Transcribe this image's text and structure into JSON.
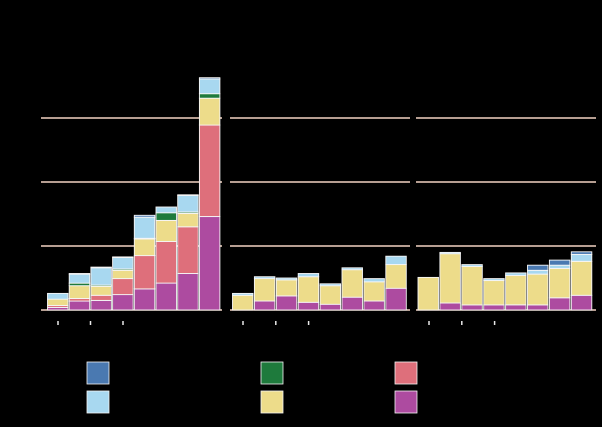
{
  "chart_data": {
    "type": "bar",
    "stacked": true,
    "title": "",
    "xlabel": "",
    "ylabel": "",
    "ylim": [
      0,
      360
    ],
    "yticks": [
      100,
      200,
      300
    ],
    "grid": true,
    "legend_position": "bottom",
    "colors": {
      "dark_blue": "#4a79b1",
      "light_blue": "#a8d8f0",
      "green": "#1e7a3c",
      "yellow": "#eddc8a",
      "salmon": "#de6f7b",
      "magenta": "#ad4ba0"
    },
    "series_order": [
      "magenta",
      "salmon",
      "yellow",
      "green",
      "light_blue",
      "dark_blue"
    ],
    "legend_order": [
      "dark_blue",
      "green",
      "salmon",
      "light_blue",
      "yellow",
      "magenta"
    ],
    "panels": [
      {
        "bars": [
          {
            "magenta": 4,
            "salmon": 3,
            "yellow": 10,
            "green": 0,
            "light_blue": 9,
            "dark_blue": 0
          },
          {
            "magenta": 14,
            "salmon": 4,
            "yellow": 20,
            "green": 4,
            "light_blue": 14,
            "dark_blue": 1
          },
          {
            "magenta": 15,
            "salmon": 8,
            "yellow": 14,
            "green": 2,
            "light_blue": 27,
            "dark_blue": 1
          },
          {
            "magenta": 24,
            "salmon": 25,
            "yellow": 13,
            "green": 2,
            "light_blue": 18,
            "dark_blue": 1
          },
          {
            "magenta": 33,
            "salmon": 52,
            "yellow": 26,
            "green": 1,
            "light_blue": 33,
            "dark_blue": 3
          },
          {
            "magenta": 42,
            "salmon": 65,
            "yellow": 33,
            "green": 12,
            "light_blue": 9,
            "dark_blue": 0
          },
          {
            "magenta": 57,
            "salmon": 73,
            "yellow": 21,
            "green": 2,
            "light_blue": 26,
            "dark_blue": 1
          },
          {
            "magenta": 146,
            "salmon": 143,
            "yellow": 42,
            "green": 7,
            "light_blue": 23,
            "dark_blue": 2
          }
        ],
        "ticks": [
          1,
          3,
          5
        ]
      },
      {
        "bars": [
          {
            "magenta": 0,
            "salmon": 0,
            "yellow": 23,
            "green": 0,
            "light_blue": 3,
            "dark_blue": 0
          },
          {
            "magenta": 14,
            "salmon": 0,
            "yellow": 35,
            "green": 0,
            "light_blue": 3,
            "dark_blue": 0
          },
          {
            "magenta": 22,
            "salmon": 0,
            "yellow": 25,
            "green": 0,
            "light_blue": 3,
            "dark_blue": 0
          },
          {
            "magenta": 12,
            "salmon": 0,
            "yellow": 40,
            "green": 0,
            "light_blue": 5,
            "dark_blue": 0
          },
          {
            "magenta": 9,
            "salmon": 0,
            "yellow": 29,
            "green": 0,
            "light_blue": 3,
            "dark_blue": 0
          },
          {
            "magenta": 20,
            "salmon": 0,
            "yellow": 43,
            "green": 0,
            "light_blue": 3,
            "dark_blue": 0
          },
          {
            "magenta": 14,
            "salmon": 0,
            "yellow": 30,
            "green": 0,
            "light_blue": 5,
            "dark_blue": 0
          },
          {
            "magenta": 34,
            "salmon": 0,
            "yellow": 37,
            "green": 0,
            "light_blue": 13,
            "dark_blue": 0
          }
        ],
        "ticks": [
          1,
          3,
          5
        ]
      },
      {
        "bars": [
          {
            "magenta": 0,
            "salmon": 0,
            "yellow": 51,
            "green": 0,
            "light_blue": 0,
            "dark_blue": 0
          },
          {
            "magenta": 11,
            "salmon": 0,
            "yellow": 77,
            "green": 0,
            "light_blue": 2,
            "dark_blue": 0
          },
          {
            "magenta": 8,
            "salmon": 0,
            "yellow": 60,
            "green": 0,
            "light_blue": 3,
            "dark_blue": 0
          },
          {
            "magenta": 8,
            "salmon": 0,
            "yellow": 38,
            "green": 0,
            "light_blue": 3,
            "dark_blue": 0
          },
          {
            "magenta": 8,
            "salmon": 0,
            "yellow": 46,
            "green": 0,
            "light_blue": 4,
            "dark_blue": 0
          },
          {
            "magenta": 8,
            "salmon": 0,
            "yellow": 48,
            "green": 0,
            "light_blue": 6,
            "dark_blue": 8
          },
          {
            "magenta": 19,
            "salmon": 0,
            "yellow": 46,
            "green": 0,
            "light_blue": 5,
            "dark_blue": 8
          },
          {
            "magenta": 23,
            "salmon": 0,
            "yellow": 53,
            "green": 0,
            "light_blue": 11,
            "dark_blue": 4
          }
        ],
        "ticks": [
          1,
          3,
          5
        ]
      }
    ]
  }
}
